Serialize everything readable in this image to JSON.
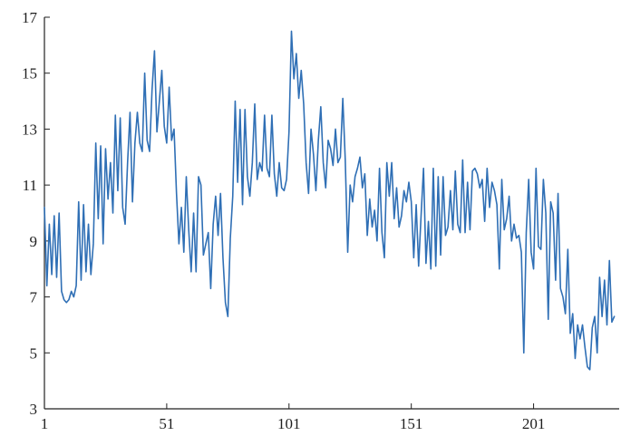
{
  "chart_data": {
    "type": "line",
    "title": "",
    "xlabel": "",
    "ylabel": "",
    "xlim": [
      1,
      236
    ],
    "ylim": [
      3,
      17
    ],
    "x_ticks": [
      1,
      51,
      101,
      151,
      201
    ],
    "y_ticks": [
      3,
      5,
      7,
      9,
      11,
      13,
      15,
      17
    ],
    "grid": false,
    "legend": "none",
    "line_color": "#2f6fb5",
    "series": [
      {
        "values": [
          10.2,
          7.4,
          9.6,
          7.8,
          9.9,
          7.7,
          10.0,
          7.2,
          6.9,
          6.8,
          6.9,
          7.2,
          7.0,
          7.4,
          10.4,
          7.6,
          10.3,
          7.9,
          9.6,
          7.8,
          8.9,
          12.5,
          9.8,
          12.4,
          8.9,
          12.3,
          10.5,
          11.8,
          10.0,
          13.5,
          10.8,
          13.4,
          10.2,
          9.6,
          11.8,
          13.6,
          10.4,
          12.5,
          13.6,
          12.5,
          12.2,
          15.0,
          12.6,
          12.2,
          14.4,
          15.8,
          12.9,
          14.0,
          15.1,
          13.1,
          12.5,
          14.5,
          12.6,
          13.0,
          10.7,
          8.9,
          10.2,
          8.6,
          11.3,
          9.4,
          7.9,
          10.0,
          7.9,
          11.3,
          11.0,
          8.5,
          8.9,
          9.3,
          7.3,
          9.6,
          10.6,
          9.2,
          10.7,
          8.4,
          6.8,
          6.3,
          9.1,
          10.6,
          14.0,
          11.1,
          13.7,
          10.3,
          13.7,
          11.3,
          10.6,
          11.8,
          13.9,
          11.2,
          11.8,
          11.5,
          13.5,
          11.6,
          11.3,
          13.5,
          11.4,
          10.6,
          11.8,
          10.9,
          10.8,
          11.2,
          12.9,
          16.5,
          14.8,
          15.7,
          14.1,
          15.1,
          13.9,
          11.8,
          10.7,
          13.0,
          12.1,
          10.8,
          12.6,
          13.8,
          11.8,
          10.9,
          12.6,
          12.3,
          11.7,
          13.0,
          11.8,
          12.0,
          14.1,
          11.9,
          8.6,
          11.0,
          10.4,
          11.3,
          11.6,
          12.0,
          10.9,
          11.4,
          9.2,
          10.5,
          9.5,
          10.1,
          9.0,
          11.6,
          9.3,
          8.4,
          11.8,
          10.6,
          11.8,
          9.8,
          10.9,
          9.5,
          9.9,
          10.8,
          10.4,
          11.1,
          10.4,
          8.4,
          10.3,
          8.1,
          9.9,
          11.6,
          8.2,
          9.7,
          8.0,
          11.6,
          8.1,
          11.3,
          8.5,
          11.3,
          9.2,
          9.5,
          10.8,
          9.4,
          11.5,
          9.6,
          9.3,
          11.9,
          9.3,
          11.1,
          9.4,
          11.5,
          11.6,
          11.4,
          10.9,
          11.2,
          9.7,
          11.6,
          10.2,
          11.1,
          10.8,
          10.3,
          8.0,
          11.2,
          9.4,
          9.8,
          10.6,
          9.0,
          9.6,
          9.1,
          9.2,
          8.6,
          5.0,
          9.3,
          11.2,
          8.6,
          8.0,
          11.6,
          8.8,
          8.7,
          11.2,
          10.0,
          6.2,
          10.4,
          10.0,
          7.6,
          10.7,
          7.3,
          7.0,
          6.4,
          8.7,
          5.7,
          6.4,
          4.8,
          6.0,
          5.5,
          6.0,
          5.2,
          4.5,
          4.4,
          5.9,
          6.3,
          5.0,
          7.7,
          6.3,
          7.6,
          6.0,
          8.3,
          6.1,
          6.3
        ]
      }
    ]
  }
}
